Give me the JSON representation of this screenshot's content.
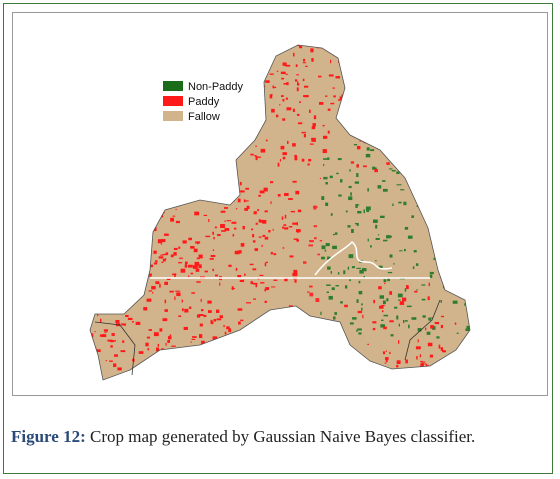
{
  "figure": {
    "legend": [
      "Non-Paddy",
      "Paddy",
      "Fallow"
    ],
    "caption": {
      "label": "Figure 12:",
      "text": "Crop map generated by Gaussian Naive Bayes classifier."
    }
  }
}
